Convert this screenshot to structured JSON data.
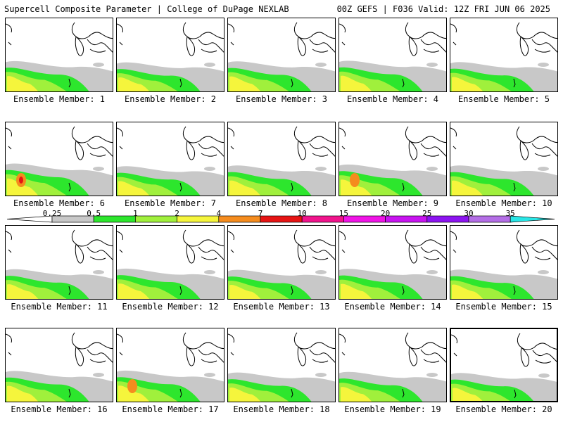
{
  "header": {
    "left": "Supercell Composite Parameter | College of DuPage NEXLAB",
    "right": "00Z GEFS | F036 Valid: 12Z FRI JUN 06 2025"
  },
  "legend": {
    "levels": [
      "0.25",
      "0.5",
      "1",
      "2",
      "4",
      "7",
      "10",
      "15",
      "20",
      "25",
      "30",
      "35"
    ],
    "colors": [
      "#c8c8c8",
      "#2de62d",
      "#a0f03c",
      "#f5f53c",
      "#f58c1e",
      "#e61414",
      "#f0148c",
      "#f014e6",
      "#c814f0",
      "#8c14f0",
      "#b46ee6",
      "#28e6e6"
    ]
  },
  "panels": [
    {
      "label": "Ensemble Member: 1",
      "intensity": 0.75,
      "highlight": false
    },
    {
      "label": "Ensemble Member: 2",
      "intensity": 0.55,
      "highlight": false
    },
    {
      "label": "Ensemble Member: 3",
      "intensity": 0.7,
      "highlight": false
    },
    {
      "label": "Ensemble Member: 4",
      "intensity": 0.8,
      "highlight": false
    },
    {
      "label": "Ensemble Member: 5",
      "intensity": 0.6,
      "highlight": false
    },
    {
      "label": "Ensemble Member: 6",
      "intensity": 1.0,
      "highlight": false
    },
    {
      "label": "Ensemble Member: 7",
      "intensity": 0.6,
      "highlight": false
    },
    {
      "label": "Ensemble Member: 8",
      "intensity": 0.7,
      "highlight": false
    },
    {
      "label": "Ensemble Member: 9",
      "intensity": 0.85,
      "highlight": false
    },
    {
      "label": "Ensemble Member: 10",
      "intensity": 0.7,
      "highlight": false
    },
    {
      "label": "Ensemble Member: 11",
      "intensity": 0.65,
      "highlight": false
    },
    {
      "label": "Ensemble Member: 12",
      "intensity": 0.75,
      "highlight": false
    },
    {
      "label": "Ensemble Member: 13",
      "intensity": 0.55,
      "highlight": false
    },
    {
      "label": "Ensemble Member: 14",
      "intensity": 0.7,
      "highlight": false
    },
    {
      "label": "Ensemble Member: 15",
      "intensity": 0.6,
      "highlight": false
    },
    {
      "label": "Ensemble Member: 16",
      "intensity": 0.8,
      "highlight": false
    },
    {
      "label": "Ensemble Member: 17",
      "intensity": 0.85,
      "highlight": false
    },
    {
      "label": "Ensemble Member: 18",
      "intensity": 0.55,
      "highlight": false
    },
    {
      "label": "Ensemble Member: 19",
      "intensity": 0.65,
      "highlight": false
    },
    {
      "label": "Ensemble Member: 20",
      "intensity": 0.6,
      "highlight": true
    }
  ]
}
